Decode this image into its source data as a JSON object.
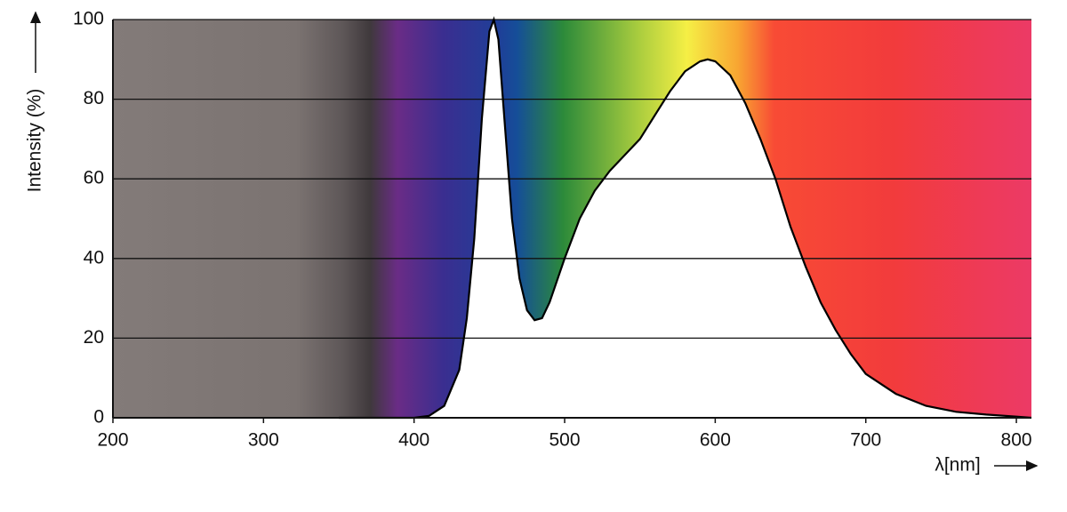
{
  "chart_data": {
    "type": "area",
    "xlabel": "λ[nm]",
    "ylabel": "Intensity (%)",
    "x": [
      350,
      400,
      410,
      420,
      430,
      435,
      440,
      445,
      450,
      453,
      456,
      460,
      465,
      470,
      475,
      480,
      485,
      490,
      500,
      510,
      520,
      530,
      540,
      550,
      560,
      570,
      580,
      590,
      595,
      600,
      610,
      620,
      630,
      640,
      650,
      660,
      670,
      680,
      690,
      700,
      720,
      740,
      760,
      780,
      800,
      810
    ],
    "values": [
      0,
      0,
      0.5,
      3,
      12,
      25,
      45,
      75,
      97,
      100,
      95,
      75,
      50,
      35,
      27,
      24.5,
      25,
      29,
      40,
      50,
      57,
      62,
      66,
      70,
      76,
      82,
      87,
      89.5,
      90,
      89.5,
      86,
      79,
      70,
      60,
      48,
      38,
      29,
      22,
      16,
      11,
      6,
      3,
      1.5,
      0.8,
      0.3,
      0
    ],
    "fill": "#ffffff",
    "line_color": "#000000",
    "xlim": [
      200,
      810
    ],
    "ylim": [
      0,
      100
    ],
    "xticks": [
      200,
      300,
      400,
      500,
      600,
      700,
      800
    ],
    "yticks": [
      0,
      20,
      40,
      60,
      80,
      100
    ],
    "grid": true
  }
}
